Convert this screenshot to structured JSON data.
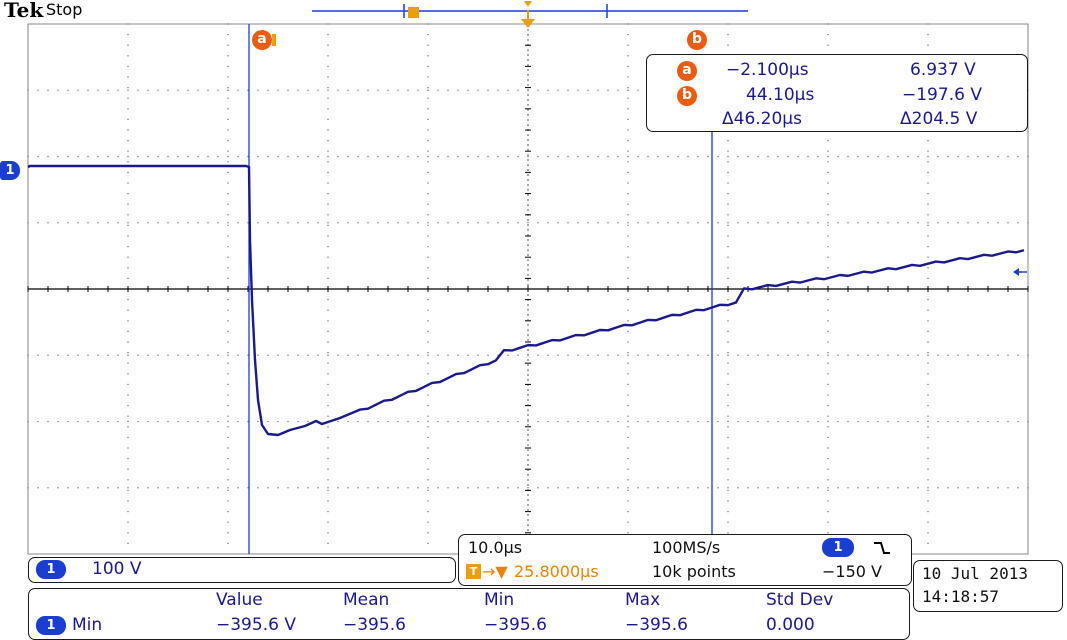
{
  "header": {
    "brand": "Tek",
    "acq_state": "Stop"
  },
  "waveform": {
    "channel_marker": "1",
    "cursor_a_marker": "a",
    "cursor_b_marker": "b",
    "trigger_marker": "T"
  },
  "cursors": {
    "a": {
      "label": "a",
      "time": "−2.100μs",
      "volt": "6.937 V"
    },
    "b": {
      "label": "b",
      "time": "44.10μs",
      "volt": "−197.6 V"
    },
    "delta": {
      "time": "Δ46.20μs",
      "volt": "Δ204.5 V"
    }
  },
  "channel_scale": {
    "channel": "1",
    "value": "100 V"
  },
  "timebase": {
    "per_div": "10.0μs",
    "sample_rate": "100MS/s",
    "trigger_delay": "25.8000μs",
    "record_length": "10k points",
    "trigger_channel": "1",
    "trigger_slope_icon": "falling-edge-icon",
    "trigger_level": "−150 V"
  },
  "datetime": {
    "date": "10 Jul  2013",
    "time": "14:18:57"
  },
  "measurements": {
    "headers": [
      "Value",
      "Mean",
      "Min",
      "Max",
      "Std Dev"
    ],
    "row": {
      "channel": "1",
      "type": "Min",
      "value": "−395.6 V",
      "mean": "−395.6",
      "min": "−395.6",
      "max": "−395.6",
      "std_dev": "0.000"
    }
  },
  "colors": {
    "trace": "#1a1a8c",
    "cursor": "#1a3fd0",
    "accent": "#e85d13",
    "trigger": "#e8a010"
  }
}
